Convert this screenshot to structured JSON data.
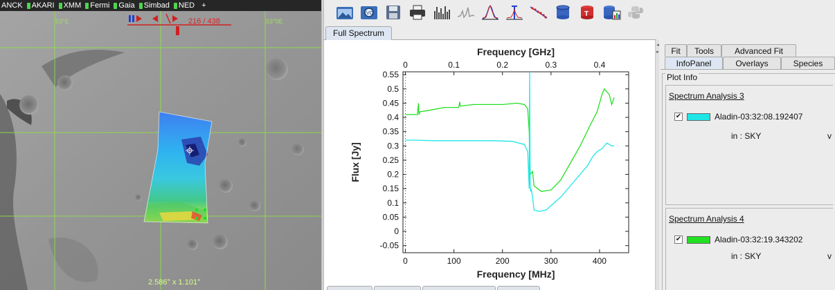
{
  "aladin": {
    "surveys": [
      {
        "label": "ANCK",
        "dot": false
      },
      {
        "label": "AKARI",
        "dot": true
      },
      {
        "label": "XMM",
        "dot": true
      },
      {
        "label": "Fermi",
        "dot": true
      },
      {
        "label": "Gaia",
        "dot": true
      },
      {
        "label": "Simbad",
        "dot": true
      },
      {
        "label": "NED",
        "dot": true
      }
    ],
    "add_label": "+",
    "frame_counter": "216 / 438",
    "grid_labels": [
      "53°E",
      "53°0E"
    ],
    "fov_readout": "2.586° x 1.101°"
  },
  "toolbar": {
    "buttons": [
      {
        "name": "open-file-button",
        "icon": "folder-image-icon"
      },
      {
        "name": "open-vo-button",
        "icon": "vo-search-icon"
      },
      {
        "name": "save-button",
        "icon": "floppy-disk-icon"
      },
      {
        "name": "print-button",
        "icon": "printer-icon"
      },
      {
        "name": "line-list-button",
        "icon": "line-list-icon"
      },
      {
        "name": "spectrum-gray-button",
        "icon": "spectrum-gray-icon"
      },
      {
        "name": "fit-gaussian-button",
        "icon": "gaussian-fit-icon"
      },
      {
        "name": "line-identification-button",
        "icon": "line-id-icon"
      },
      {
        "name": "rotational-diagram-button",
        "icon": "rotational-diagram-icon"
      },
      {
        "name": "database-button",
        "icon": "database-icon"
      },
      {
        "name": "template-button",
        "icon": "template-icon"
      },
      {
        "name": "database-chart-button",
        "icon": "database-chart-icon"
      },
      {
        "name": "python-button",
        "icon": "python-icon"
      }
    ]
  },
  "tabs": {
    "main": "Full Spectrum",
    "side_row1": [
      "Fit",
      "Tools",
      "Advanced Fit"
    ],
    "side_row2": [
      "InfoPanel",
      "Overlays",
      "Species"
    ],
    "active_side": "InfoPanel"
  },
  "plot_info": {
    "title": "Plot Info",
    "analyses": [
      {
        "title": "Spectrum Analysis 3",
        "checked": "✔",
        "color": "#1ee6e6",
        "name": "Aladin-03:32:08.192407",
        "frame": "in : SKY",
        "trail": "v"
      },
      {
        "title": "Spectrum Analysis 4",
        "checked": "✔",
        "color": "#22e022",
        "name": "Aladin-03:32:19.343202",
        "frame": "in : SKY",
        "trail": "v"
      }
    ]
  },
  "chart_data": {
    "type": "line",
    "xlabel": "Frequency [MHz]",
    "x2label": "Frequency [GHz]",
    "ylabel": "Flux [Jy]",
    "xlim": [
      -5,
      460
    ],
    "ylim": [
      -0.075,
      0.56
    ],
    "x_ticks": [
      0,
      100,
      200,
      300,
      400
    ],
    "x2_ticks": [
      "0",
      "0.1",
      "0.2",
      "0.3",
      "0.4"
    ],
    "y_ticks": [
      "-0.05",
      "0",
      "0.05",
      "0.1",
      "0.15",
      "0.2",
      "0.25",
      "0.3",
      "0.35",
      "0.4",
      "0.45",
      "0.5",
      "0.55"
    ],
    "series": [
      {
        "color": "#22e022",
        "x": [
          0,
          10,
          25,
          27,
          28,
          30,
          50,
          80,
          110,
          112,
          113,
          115,
          140,
          170,
          200,
          230,
          245,
          252,
          255,
          257,
          262,
          265,
          280,
          300,
          320,
          340,
          360,
          380,
          395,
          405,
          410,
          415,
          420,
          425,
          430
        ],
        "y": [
          0.41,
          0.41,
          0.41,
          0.45,
          0.41,
          0.42,
          0.425,
          0.435,
          0.435,
          0.455,
          0.44,
          0.44,
          0.445,
          0.445,
          0.445,
          0.45,
          0.445,
          0.43,
          0.35,
          0.2,
          0.21,
          0.16,
          0.14,
          0.145,
          0.18,
          0.24,
          0.3,
          0.37,
          0.42,
          0.48,
          0.5,
          0.49,
          0.48,
          0.445,
          0.47
        ]
      },
      {
        "color": "#1ee6e6",
        "x": [
          0,
          20,
          60,
          100,
          140,
          180,
          220,
          245,
          252,
          255,
          256,
          257,
          258,
          259,
          262,
          265,
          275,
          290,
          300,
          320,
          340,
          360,
          375,
          385,
          395,
          405,
          415,
          425,
          430
        ],
        "y": [
          0.32,
          0.32,
          0.318,
          0.318,
          0.318,
          0.318,
          0.316,
          0.305,
          0.28,
          0.15,
          0.56,
          0.17,
          0.14,
          0.15,
          0.12,
          0.075,
          0.07,
          0.075,
          0.09,
          0.12,
          0.16,
          0.2,
          0.23,
          0.26,
          0.28,
          0.29,
          0.31,
          0.3,
          0.3
        ]
      }
    ]
  }
}
